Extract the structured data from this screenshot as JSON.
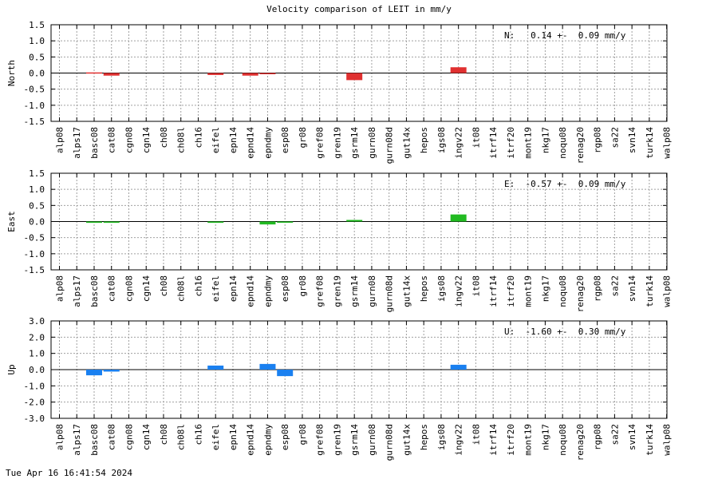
{
  "title": "Velocity comparison of LEIT in mm/y",
  "timestamp": "Tue Apr 16 16:41:54 2024",
  "chart_data": [
    {
      "type": "bar",
      "ylabel": "North",
      "ylim": [
        -1.5,
        1.5
      ],
      "yticks": [
        "1.5",
        "1.0",
        "0.5",
        "0.0",
        "-0.5",
        "-1.0",
        "-1.5"
      ],
      "grid": true,
      "annotation": "N:   0.14 +-  0.09 mm/y",
      "color": "#e03030",
      "categories": [
        "alp08",
        "alps17",
        "basc08",
        "cat08",
        "cgn08",
        "cgn14",
        "ch08",
        "ch08l",
        "ch16",
        "eifel",
        "epn14",
        "epnd14",
        "epndmy",
        "esp08",
        "gr08",
        "gref08",
        "gren19",
        "gsrm14",
        "gurn08",
        "gurn08d",
        "gut14x",
        "hepos",
        "igs08",
        "ingv22",
        "it08",
        "itrf14",
        "itrf20",
        "mont19",
        "nkg17",
        "noqu08",
        "renag20",
        "rgp08",
        "sa22",
        "svn14",
        "turk14",
        "walp08"
      ],
      "values": [
        null,
        null,
        0.02,
        -0.08,
        null,
        null,
        null,
        null,
        null,
        -0.06,
        null,
        -0.08,
        -0.02,
        null,
        null,
        null,
        null,
        -0.22,
        null,
        null,
        null,
        null,
        null,
        0.18,
        null,
        null,
        null,
        null,
        null,
        null,
        null,
        null,
        null,
        null,
        null,
        null
      ]
    },
    {
      "type": "bar",
      "ylabel": "East",
      "ylim": [
        -1.5,
        1.5
      ],
      "yticks": [
        "1.5",
        "1.0",
        "0.5",
        "0.0",
        "-0.5",
        "-1.0",
        "-1.5"
      ],
      "grid": true,
      "annotation": "E:  -0.57 +-  0.09 mm/y",
      "color": "#22bb22",
      "categories": [
        "alp08",
        "alps17",
        "basc08",
        "cat08",
        "cgn08",
        "cgn14",
        "ch08",
        "ch08l",
        "ch16",
        "eifel",
        "epn14",
        "epnd14",
        "epndmy",
        "esp08",
        "gr08",
        "gref08",
        "gren19",
        "gsrm14",
        "gurn08",
        "gurn08d",
        "gut14x",
        "hepos",
        "igs08",
        "ingv22",
        "it08",
        "itrf14",
        "itrf20",
        "mont19",
        "nkg17",
        "noqu08",
        "renag20",
        "rgp08",
        "sa22",
        "svn14",
        "turk14",
        "walp08"
      ],
      "values": [
        null,
        null,
        -0.04,
        -0.04,
        null,
        null,
        null,
        null,
        null,
        -0.04,
        null,
        null,
        -0.09,
        -0.02,
        null,
        null,
        null,
        0.05,
        null,
        null,
        null,
        null,
        null,
        0.22,
        null,
        null,
        null,
        null,
        null,
        null,
        null,
        null,
        null,
        null,
        null,
        null
      ]
    },
    {
      "type": "bar",
      "ylabel": "Up",
      "ylim": [
        -3.0,
        3.0
      ],
      "yticks": [
        "3.0",
        "2.0",
        "1.0",
        "0.0",
        "-1.0",
        "-2.0",
        "-3.0"
      ],
      "grid": true,
      "annotation": "U:  -1.60 +-  0.30 mm/y",
      "color": "#1a80f0",
      "categories": [
        "alp08",
        "alps17",
        "basc08",
        "cat08",
        "cgn08",
        "cgn14",
        "ch08",
        "ch08l",
        "ch16",
        "eifel",
        "epn14",
        "epnd14",
        "epndmy",
        "esp08",
        "gr08",
        "gref08",
        "gren19",
        "gsrm14",
        "gurn08",
        "gurn08d",
        "gut14x",
        "hepos",
        "igs08",
        "ingv22",
        "it08",
        "itrf14",
        "itrf20",
        "mont19",
        "nkg17",
        "noqu08",
        "renag20",
        "rgp08",
        "sa22",
        "svn14",
        "turk14",
        "walp08"
      ],
      "values": [
        null,
        null,
        -0.35,
        -0.12,
        null,
        null,
        null,
        null,
        null,
        0.25,
        null,
        null,
        0.35,
        -0.4,
        null,
        null,
        null,
        null,
        null,
        null,
        null,
        null,
        null,
        0.3,
        null,
        null,
        null,
        null,
        null,
        null,
        null,
        null,
        null,
        null,
        null,
        null
      ]
    }
  ]
}
